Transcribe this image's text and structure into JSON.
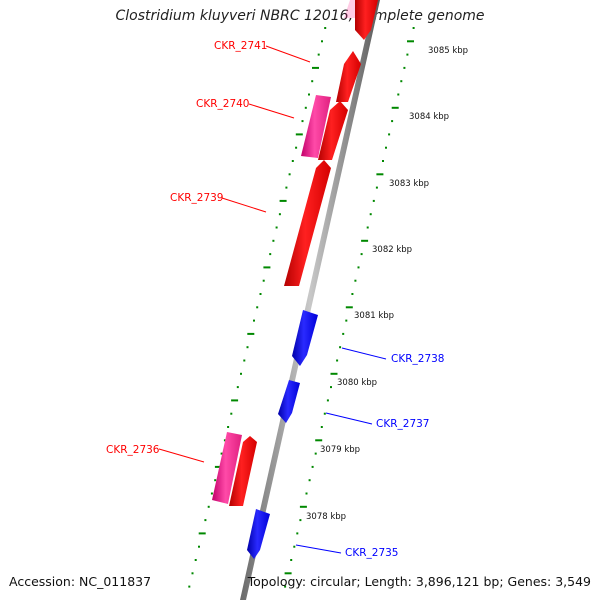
{
  "title": "Clostridium kluyveri NBRC 12016, complete genome",
  "accession_text": "Accession: NC_011837",
  "summary_text": "Topology: circular; Length: 3,896,121 bp; Genes: 3,549",
  "colors": {
    "forward": "#ff0000",
    "reverse": "#0000ff",
    "pseudo": "#ff3399",
    "tick": "#008800",
    "backbone": "#888888"
  },
  "scale": {
    "unit": "kbp",
    "labels": [
      "3085 kbp",
      "3084 kbp",
      "3083 kbp",
      "3082 kbp",
      "3081 kbp",
      "3080 kbp",
      "3079 kbp",
      "3078 kbp"
    ]
  },
  "genes": [
    {
      "name": "CKR_2741",
      "strand": "forward"
    },
    {
      "name": "CKR_2740",
      "strand": "forward"
    },
    {
      "name": "CKR_2739",
      "strand": "forward"
    },
    {
      "name": "CKR_2738",
      "strand": "reverse"
    },
    {
      "name": "CKR_2737",
      "strand": "reverse"
    },
    {
      "name": "CKR_2736",
      "strand": "forward"
    },
    {
      "name": "CKR_2735",
      "strand": "reverse"
    }
  ]
}
